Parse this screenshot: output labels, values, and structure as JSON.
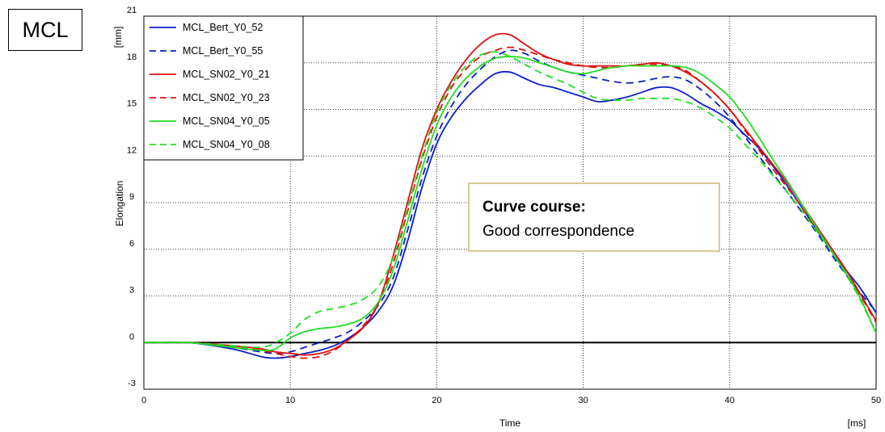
{
  "badge": "MCL",
  "chart_data": {
    "type": "line",
    "title": "",
    "xlabel": "Time",
    "xunit": "[ms]",
    "ylabel": "Elongation",
    "yunit": "[mm]",
    "xlim": [
      0,
      50
    ],
    "ylim": [
      -3,
      21
    ],
    "xticks": [
      0,
      10,
      20,
      30,
      40,
      50
    ],
    "yticks": [
      -3,
      0,
      3,
      6,
      9,
      12,
      15,
      18,
      21
    ],
    "grid": true,
    "legend_position": "top-left",
    "annotation": {
      "title": "Curve course:",
      "text": "Good correspondence"
    },
    "series": [
      {
        "name": "MCL_Bert_Y0_52",
        "color": "#0a1fc8",
        "dash": "solid",
        "x": [
          0,
          3,
          6,
          8,
          9,
          10,
          11,
          12,
          13,
          14,
          15,
          16,
          17,
          18,
          19,
          20,
          21,
          22,
          23,
          24,
          25,
          26,
          27,
          28,
          29,
          30,
          31,
          32,
          33,
          34,
          35,
          36,
          37,
          38,
          39,
          40,
          41,
          42,
          43,
          44,
          45,
          46,
          47,
          48,
          49,
          50
        ],
        "y": [
          0,
          0,
          -0.4,
          -0.9,
          -1.0,
          -0.9,
          -0.7,
          -0.5,
          -0.2,
          0.3,
          1.0,
          2.0,
          3.6,
          6.5,
          10.0,
          12.8,
          14.5,
          15.7,
          16.6,
          17.3,
          17.4,
          17.0,
          16.6,
          16.4,
          16.1,
          15.8,
          15.5,
          15.6,
          15.8,
          16.1,
          16.4,
          16.4,
          16.0,
          15.4,
          14.9,
          14.3,
          13.4,
          12.5,
          11.3,
          10.0,
          8.6,
          7.2,
          5.8,
          4.6,
          3.4,
          1.9
        ]
      },
      {
        "name": "MCL_Bert_Y0_55",
        "color": "#0a1fc8",
        "dash": "dashed",
        "x": [
          0,
          3,
          6,
          8,
          9,
          10,
          11,
          12,
          13,
          14,
          15,
          16,
          17,
          18,
          19,
          20,
          21,
          22,
          23,
          24,
          25,
          26,
          27,
          28,
          29,
          30,
          31,
          32,
          33,
          34,
          35,
          36,
          37,
          38,
          39,
          40,
          41,
          42,
          43,
          44,
          45,
          46,
          47,
          48,
          49,
          50
        ],
        "y": [
          0,
          0,
          -0.3,
          -0.6,
          -0.7,
          -0.6,
          -0.3,
          0.0,
          0.3,
          0.7,
          1.4,
          2.4,
          4.1,
          7.2,
          10.6,
          13.3,
          15.2,
          16.6,
          17.6,
          18.4,
          18.8,
          18.6,
          18.1,
          17.7,
          17.4,
          17.2,
          17.0,
          16.8,
          16.7,
          16.8,
          17.0,
          17.1,
          16.9,
          16.3,
          15.5,
          14.5,
          13.3,
          12.0,
          10.8,
          9.6,
          8.3,
          7.0,
          5.6,
          4.3,
          3.1,
          2.0
        ]
      },
      {
        "name": "MCL_SN02_Y0_21",
        "color": "#e01010",
        "dash": "solid",
        "x": [
          0,
          3,
          6,
          8,
          9,
          10,
          11,
          12,
          13,
          14,
          15,
          16,
          17,
          18,
          19,
          20,
          21,
          22,
          23,
          24,
          25,
          26,
          27,
          28,
          29,
          30,
          31,
          32,
          33,
          34,
          35,
          36,
          37,
          38,
          39,
          40,
          41,
          42,
          43,
          44,
          45,
          46,
          47,
          48,
          49,
          50
        ],
        "y": [
          0,
          0,
          -0.2,
          -0.4,
          -0.6,
          -0.7,
          -0.8,
          -0.7,
          -0.4,
          0.2,
          1.0,
          2.5,
          5.5,
          9.0,
          12.5,
          15.0,
          16.8,
          18.2,
          19.2,
          19.8,
          19.8,
          19.2,
          18.6,
          18.2,
          17.9,
          17.8,
          17.8,
          17.8,
          17.8,
          17.9,
          18.0,
          17.8,
          17.4,
          16.8,
          16.0,
          15.0,
          13.8,
          12.6,
          11.4,
          10.2,
          8.8,
          7.4,
          6.0,
          4.6,
          3.0,
          1.4
        ]
      },
      {
        "name": "MCL_SN02_Y0_23",
        "color": "#e01010",
        "dash": "dashed",
        "x": [
          0,
          3,
          6,
          8,
          9,
          10,
          11,
          12,
          13,
          14,
          15,
          16,
          17,
          18,
          19,
          20,
          21,
          22,
          23,
          24,
          25,
          26,
          27,
          28,
          29,
          30,
          31,
          32,
          33,
          34,
          35,
          36,
          37,
          38,
          39,
          40,
          41,
          42,
          43,
          44,
          45,
          46,
          47,
          48,
          49,
          50
        ],
        "y": [
          0,
          0,
          -0.2,
          -0.5,
          -0.7,
          -0.9,
          -1.0,
          -0.9,
          -0.5,
          0.2,
          1.1,
          2.5,
          5.0,
          8.4,
          11.8,
          14.5,
          16.4,
          17.6,
          18.4,
          18.8,
          19.0,
          18.8,
          18.5,
          18.2,
          18.0,
          17.8,
          17.7,
          17.7,
          17.8,
          17.9,
          17.9,
          17.8,
          17.5,
          16.8,
          16.0,
          15.0,
          13.7,
          12.4,
          11.1,
          9.9,
          8.6,
          7.2,
          5.8,
          4.4,
          2.9,
          1.3
        ]
      },
      {
        "name": "MCL_SN04_Y0_05",
        "color": "#22dd22",
        "dash": "solid",
        "x": [
          0,
          3,
          6,
          8,
          9,
          10,
          11,
          12,
          13,
          14,
          15,
          16,
          17,
          18,
          19,
          20,
          21,
          22,
          23,
          24,
          25,
          26,
          27,
          28,
          29,
          30,
          31,
          32,
          33,
          34,
          35,
          36,
          37,
          38,
          39,
          40,
          41,
          42,
          43,
          44,
          45,
          46,
          47,
          48,
          49,
          50
        ],
        "y": [
          0,
          0,
          -0.3,
          -0.5,
          -0.4,
          0.3,
          0.7,
          0.9,
          1.0,
          1.2,
          1.6,
          2.6,
          4.6,
          7.8,
          11.2,
          14.0,
          15.8,
          17.0,
          17.8,
          18.3,
          18.4,
          18.3,
          18.0,
          17.7,
          17.4,
          17.3,
          17.5,
          17.7,
          17.8,
          17.8,
          17.8,
          17.8,
          17.7,
          17.3,
          16.6,
          15.8,
          14.6,
          13.2,
          11.7,
          10.3,
          8.8,
          7.3,
          5.8,
          4.4,
          2.7,
          0.6
        ]
      },
      {
        "name": "MCL_SN04_Y0_08",
        "color": "#22dd22",
        "dash": "dashed",
        "x": [
          0,
          3,
          6,
          8,
          9,
          10,
          11,
          12,
          13,
          14,
          15,
          16,
          17,
          18,
          19,
          20,
          21,
          22,
          23,
          24,
          25,
          26,
          27,
          28,
          29,
          30,
          31,
          32,
          33,
          34,
          35,
          36,
          37,
          38,
          39,
          40,
          41,
          42,
          43,
          44,
          45,
          46,
          47,
          48,
          49,
          50
        ],
        "y": [
          0,
          0,
          -0.2,
          -0.3,
          0.0,
          0.6,
          1.5,
          2.0,
          2.2,
          2.4,
          2.8,
          3.6,
          5.4,
          8.6,
          12.0,
          14.8,
          16.6,
          17.8,
          18.5,
          18.7,
          18.4,
          17.9,
          17.4,
          17.0,
          16.6,
          16.1,
          15.7,
          15.6,
          15.6,
          15.7,
          15.7,
          15.7,
          15.5,
          15.1,
          14.5,
          13.8,
          12.8,
          11.8,
          10.7,
          9.6,
          8.4,
          7.1,
          5.8,
          4.3,
          2.6,
          0.6
        ]
      }
    ]
  }
}
